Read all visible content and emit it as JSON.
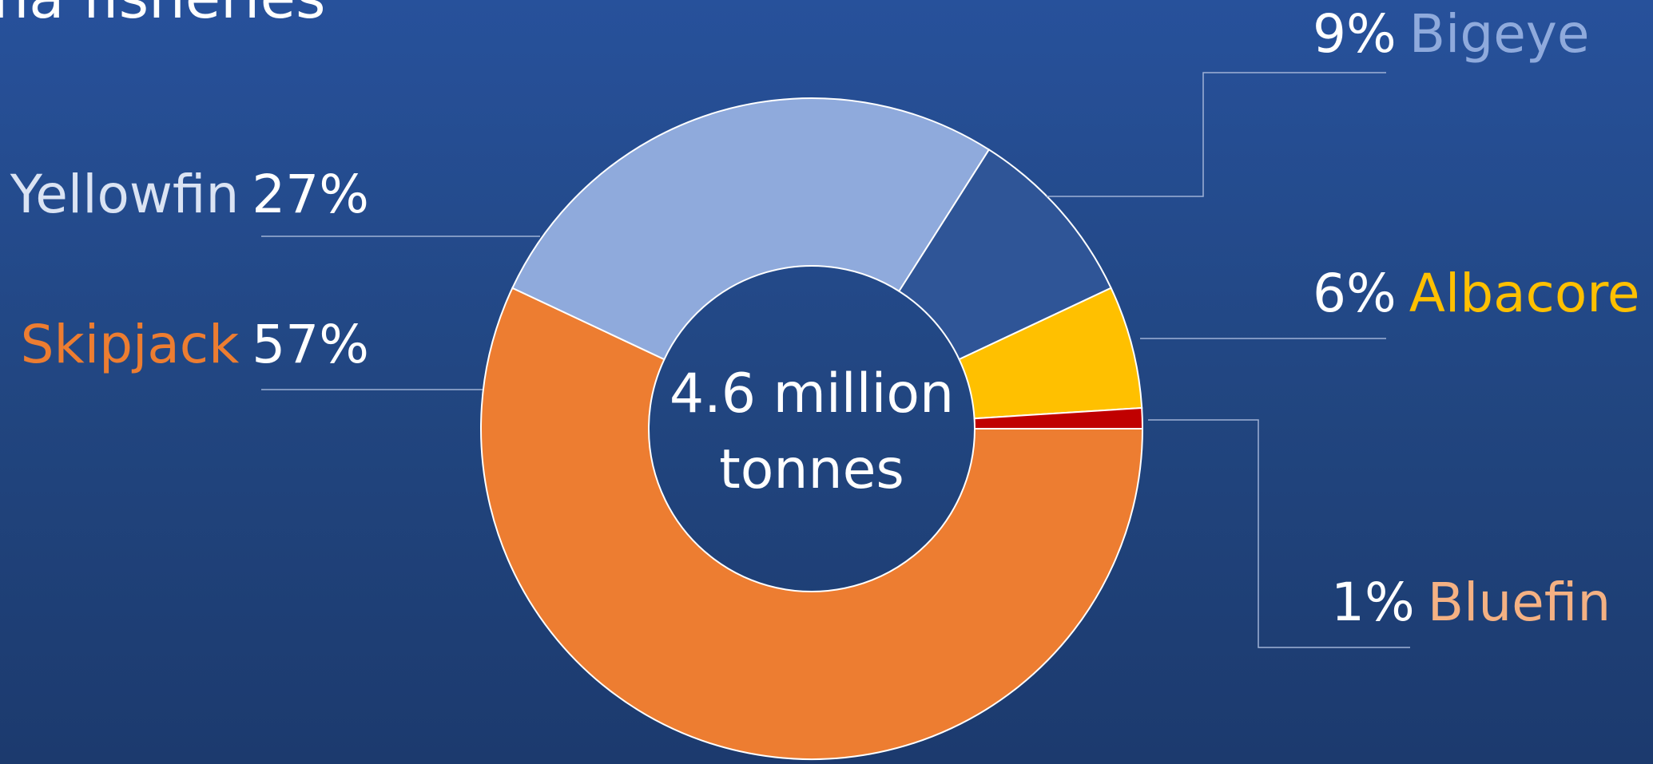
{
  "slide": {
    "title_fragment": "una fisheries"
  },
  "chart_data": {
    "type": "pie",
    "variant": "donut",
    "center_label_line1": "4.6 million",
    "center_label_line2": "tonnes",
    "slices": [
      {
        "name": "Skipjack",
        "value": 57,
        "label": "57%",
        "color": "#ed7d31",
        "label_color": "#ed7d31"
      },
      {
        "name": "Yellowfin",
        "value": 27,
        "label": "27%",
        "color": "#8faadc",
        "label_color": "#dae3f3"
      },
      {
        "name": "Bigeye",
        "value": 9,
        "label": "9%",
        "color": "#2f5597",
        "label_color": "#8faadc"
      },
      {
        "name": "Albacore",
        "value": 6,
        "label": "6%",
        "color": "#ffc000",
        "label_color": "#ffc000"
      },
      {
        "name": "Bluefin",
        "value": 1,
        "label": "1%",
        "color": "#c00000",
        "label_color": "#f4b183"
      }
    ]
  }
}
